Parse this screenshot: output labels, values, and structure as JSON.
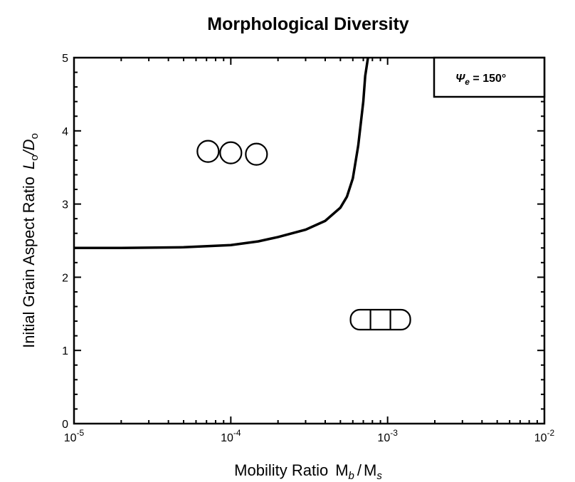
{
  "chart_data": {
    "type": "line",
    "title": "Morphological Diversity",
    "xlabel": {
      "text": "Mobility Ratio",
      "var1": "M",
      "sub1": "b",
      "sep": "/",
      "var2": "M",
      "sub2": "s"
    },
    "ylabel": {
      "text": "Initial Grain Aspect Ratio",
      "var1": "L",
      "sub1": "o",
      "sep": "/",
      "var2": "D",
      "sub2": "o"
    },
    "x_scale": "log",
    "xlim": [
      1e-05,
      0.01
    ],
    "ylim": [
      0,
      5
    ],
    "x_ticks": [
      {
        "value": 1e-05,
        "base": "10",
        "exp": "-5"
      },
      {
        "value": 0.0001,
        "base": "10",
        "exp": "-4"
      },
      {
        "value": 0.001,
        "base": "10",
        "exp": "-3"
      },
      {
        "value": 0.01,
        "base": "10",
        "exp": "-2"
      }
    ],
    "y_ticks": [
      {
        "value": 0,
        "label": "0"
      },
      {
        "value": 1,
        "label": "1"
      },
      {
        "value": 2,
        "label": "2"
      },
      {
        "value": 3,
        "label": "3"
      },
      {
        "value": 4,
        "label": "4"
      },
      {
        "value": 5,
        "label": "5"
      }
    ],
    "grid": false,
    "legend": {
      "position": "top-right",
      "symbol": "Ψ",
      "subscript": "e",
      "text": " = 150°"
    },
    "series": [
      {
        "x": [
          1e-05,
          2e-05,
          5e-05,
          0.0001,
          0.00015,
          0.0002,
          0.0003,
          0.0004,
          0.0005,
          0.00055,
          0.0006,
          0.00065,
          0.0007,
          0.00072,
          0.00075
        ],
        "y": [
          2.4,
          2.4,
          2.41,
          2.44,
          2.49,
          2.55,
          2.65,
          2.77,
          2.95,
          3.1,
          3.35,
          3.8,
          4.4,
          4.75,
          5.0
        ]
      }
    ],
    "annotations": [
      {
        "shape": "separated-circles",
        "x": 0.0001,
        "y": 3.7
      },
      {
        "shape": "connected-circles",
        "x": 0.0009,
        "y": 1.42
      }
    ]
  }
}
